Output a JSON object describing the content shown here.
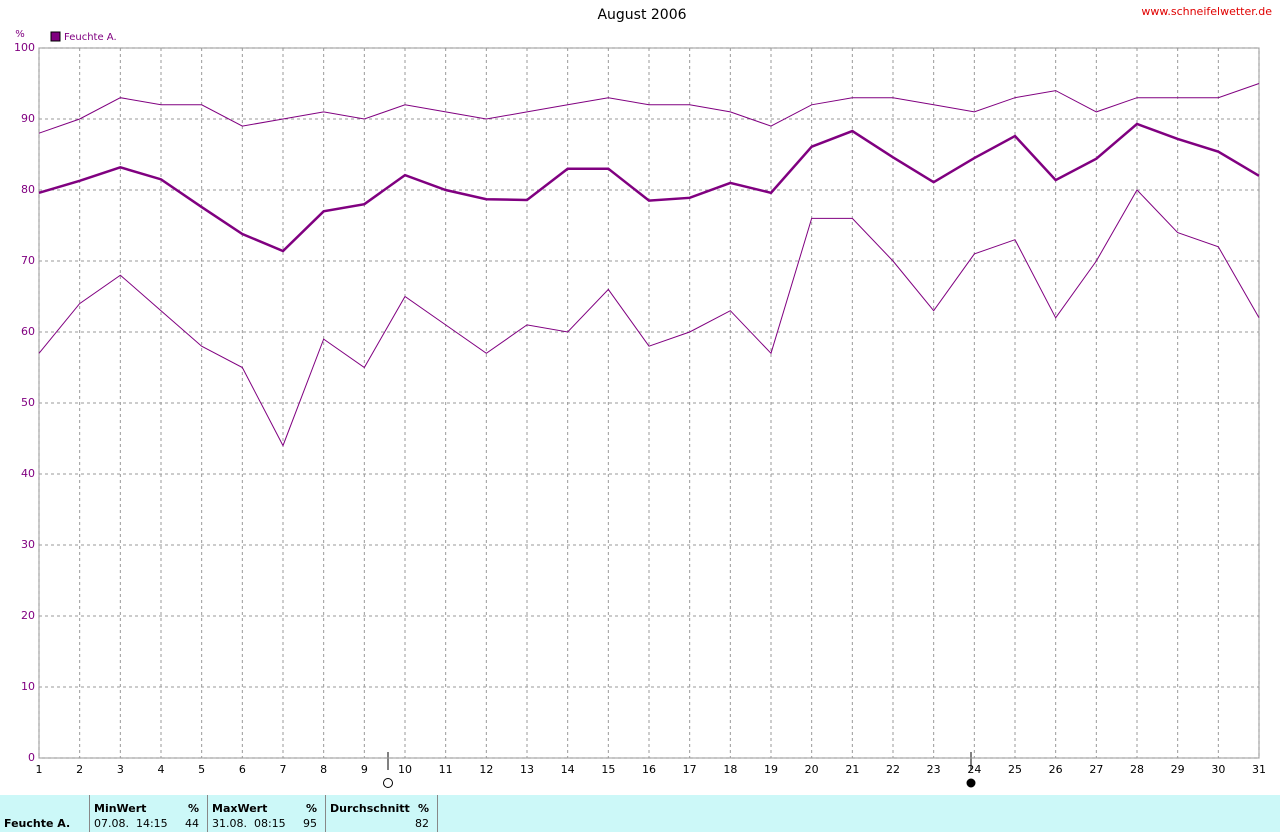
{
  "chart_data": {
    "type": "line",
    "title": "August 2006",
    "source": "www.schneifelwetter.de",
    "y_unit": "%",
    "x": [
      1,
      2,
      3,
      4,
      5,
      6,
      7,
      8,
      9,
      10,
      11,
      12,
      13,
      14,
      15,
      16,
      17,
      18,
      19,
      20,
      21,
      22,
      23,
      24,
      25,
      26,
      27,
      28,
      29,
      30,
      31
    ],
    "xlim": [
      1,
      31
    ],
    "xticks": [
      1,
      2,
      3,
      4,
      5,
      6,
      7,
      8,
      9,
      10,
      11,
      12,
      13,
      14,
      15,
      16,
      17,
      18,
      19,
      20,
      21,
      22,
      23,
      24,
      25,
      26,
      27,
      28,
      29,
      30,
      31
    ],
    "ylim": [
      0,
      100
    ],
    "yticks": [
      0,
      10,
      20,
      30,
      40,
      50,
      60,
      70,
      80,
      90,
      100
    ],
    "grid": true,
    "series": [
      {
        "color": "#800080",
        "values": [
          88,
          90,
          93,
          92,
          92,
          89,
          90,
          91,
          90,
          92,
          91,
          90,
          91,
          92,
          93,
          92,
          92,
          91,
          89,
          92,
          93,
          93,
          92,
          91,
          93,
          94,
          91,
          93,
          93,
          93,
          95
        ]
      },
      {
        "name": "Feuchte A.",
        "color": "#800080",
        "values": [
          79.6,
          81.3,
          83.2,
          81.5,
          77.6,
          73.8,
          71.4,
          77.0,
          78.0,
          82.1,
          80.0,
          78.7,
          78.6,
          83.0,
          83.0,
          78.5,
          78.9,
          81.0,
          79.6,
          86.1,
          88.3,
          84.6,
          81.1,
          84.5,
          87.6,
          81.4,
          84.4,
          89.3,
          87.2,
          85.4,
          82.0
        ]
      },
      {
        "color": "#800080",
        "values": [
          57,
          64,
          68,
          63,
          58,
          55,
          44,
          59,
          55,
          65,
          61,
          57,
          61,
          60,
          66,
          58,
          60,
          63,
          57,
          76,
          76,
          70,
          63,
          71,
          73,
          62,
          70,
          80,
          74,
          72,
          62
        ]
      }
    ]
  },
  "stats": {
    "row_label": "Feuchte A.",
    "columns": [
      {
        "header": "MinWert",
        "unit": "%",
        "date": "07.08.  14:15",
        "value": 44
      },
      {
        "header": "MaxWert",
        "unit": "%",
        "date": "31.08.  08:15",
        "value": 95
      },
      {
        "header": "Durchschnitt",
        "unit": "%",
        "value": 82
      }
    ]
  }
}
